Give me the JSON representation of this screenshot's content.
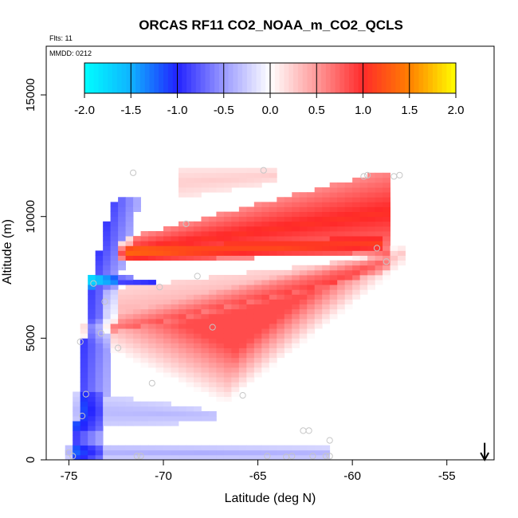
{
  "chart_data": {
    "type": "heatmap",
    "title": "ORCAS RF11 CO2_NOAA_m_CO2_QCLS",
    "flights_label": "Flts: 11",
    "date_label": "MMDD: 0212",
    "xlabel": "Latitude (deg N)",
    "ylabel": "Altitude (m)",
    "xlim": [
      -76.2,
      -52.5
    ],
    "ylim": [
      0,
      17000
    ],
    "x_ticks": [
      -75,
      -70,
      -65,
      -60,
      -55
    ],
    "y_ticks": [
      0,
      5000,
      10000,
      15000
    ],
    "colorbar": {
      "range": [
        -2.0,
        2.0
      ],
      "ticks": [
        "-2.0",
        "-1.5",
        "-1.0",
        "-0.5",
        "0.0",
        "0.5",
        "1.0",
        "1.5",
        "2.0"
      ],
      "stops": [
        {
          "v": -2.0,
          "color": "#00ffff"
        },
        {
          "v": -1.5,
          "color": "#0fb2ff"
        },
        {
          "v": -1.0,
          "color": "#2222ff"
        },
        {
          "v": -0.5,
          "color": "#9a9aff"
        },
        {
          "v": 0.0,
          "color": "#ffffff"
        },
        {
          "v": 0.5,
          "color": "#ff9a9a"
        },
        {
          "v": 1.0,
          "color": "#ff2a2a"
        },
        {
          "v": 1.5,
          "color": "#ff8000"
        },
        {
          "v": 2.0,
          "color": "#ffff00"
        }
      ]
    },
    "features": [
      {
        "name": "upper-red-band",
        "shape": "band",
        "x": [
          -72.5,
          -58.0
        ],
        "y_low": [
          8100,
          8500
        ],
        "y_high": [
          9000,
          11900
        ],
        "peak": 1.05,
        "falloff": 0.55
      },
      {
        "name": "upper-red-core",
        "shape": "band",
        "x": [
          -72.5,
          -58.2
        ],
        "y_low": [
          8150,
          8550
        ],
        "y_high": [
          8700,
          9200
        ],
        "peak": 0.45,
        "falloff": 0.4
      },
      {
        "name": "top-red-plume",
        "shape": "band",
        "x": [
          -69.0,
          -64.0
        ],
        "y_low": [
          10800,
          11400
        ],
        "y_high": [
          12000,
          12000
        ],
        "peak": 0.25,
        "falloff": 0.5
      },
      {
        "name": "mid-red-triangle",
        "shape": "triangle",
        "points": [
          [
            -73.0,
            5500
          ],
          [
            -66.5,
            3200
          ],
          [
            -58.0,
            8300
          ]
        ],
        "peak": 0.85
      },
      {
        "name": "mid-red-top",
        "shape": "band",
        "x": [
          -73.0,
          -58.0
        ],
        "y_low": [
          5200,
          7800
        ],
        "y_high": [
          7000,
          8400
        ],
        "peak": 0.35,
        "falloff": 0.6
      },
      {
        "name": "blue-edge",
        "shape": "edge",
        "x_edge": [
          [
            0,
            -74.8
          ],
          [
            5000,
            -74.2
          ],
          [
            7500,
            -73.8
          ],
          [
            9000,
            -73.2
          ],
          [
            10500,
            -72.8
          ]
        ],
        "width": 1.5,
        "peak": -0.9
      },
      {
        "name": "blue-tongue",
        "shape": "band",
        "x": [
          -73.8,
          -70.2
        ],
        "y_low": [
          7100,
          7200
        ],
        "y_high": [
          7700,
          7400
        ],
        "peak": -1.0,
        "falloff": 0.5
      },
      {
        "name": "lower-blue-layer",
        "shape": "band",
        "x": [
          -75.2,
          -67.0
        ],
        "y_low": [
          1200,
          1600
        ],
        "y_high": [
          2900,
          2000
        ],
        "peak": -0.35,
        "falloff": 0.6
      },
      {
        "name": "surface-blue-layer",
        "shape": "band",
        "x": [
          -75.2,
          -61.0
        ],
        "y_low": [
          0,
          0
        ],
        "y_high": [
          700,
          500
        ],
        "peak": -0.4,
        "falloff": 0.5
      }
    ],
    "domain": {
      "x_left_edge": [
        [
          0,
          -75.2
        ],
        [
          5000,
          -74.4
        ],
        [
          8000,
          -73.7
        ],
        [
          10500,
          -72.8
        ]
      ],
      "x_right": -57.3,
      "y_top_left": 12000,
      "y_bottom": 0
    },
    "points": [
      {
        "x": -71.6,
        "y": 11800
      },
      {
        "x": -64.7,
        "y": 11900
      },
      {
        "x": -59.4,
        "y": 11650
      },
      {
        "x": -59.2,
        "y": 11700
      },
      {
        "x": -57.8,
        "y": 11650
      },
      {
        "x": -57.5,
        "y": 11700
      },
      {
        "x": -68.8,
        "y": 9700
      },
      {
        "x": -58.7,
        "y": 8700
      },
      {
        "x": -58.2,
        "y": 8150
      },
      {
        "x": -68.2,
        "y": 7550
      },
      {
        "x": -70.2,
        "y": 7100
      },
      {
        "x": -73.7,
        "y": 7250
      },
      {
        "x": -73.1,
        "y": 6500
      },
      {
        "x": -67.4,
        "y": 5450
      },
      {
        "x": -73.3,
        "y": 5200
      },
      {
        "x": -74.4,
        "y": 4850
      },
      {
        "x": -72.4,
        "y": 4600
      },
      {
        "x": -70.6,
        "y": 3150
      },
      {
        "x": -65.8,
        "y": 2650
      },
      {
        "x": -74.1,
        "y": 2700
      },
      {
        "x": -74.3,
        "y": 1800
      },
      {
        "x": -62.6,
        "y": 1200
      },
      {
        "x": -62.3,
        "y": 1200
      },
      {
        "x": -61.2,
        "y": 800
      },
      {
        "x": -75.0,
        "y": 300
      },
      {
        "x": -74.8,
        "y": 150
      },
      {
        "x": -71.4,
        "y": 150
      },
      {
        "x": -71.2,
        "y": 150
      },
      {
        "x": -64.5,
        "y": 150
      },
      {
        "x": -63.5,
        "y": 120
      },
      {
        "x": -63.2,
        "y": 150
      },
      {
        "x": -62.1,
        "y": 150
      },
      {
        "x": -61.4,
        "y": 150
      },
      {
        "x": -61.2,
        "y": 150
      }
    ],
    "arrow": {
      "x": -53.0,
      "from_y": 700,
      "to_y": 0,
      "direction": "down"
    }
  }
}
